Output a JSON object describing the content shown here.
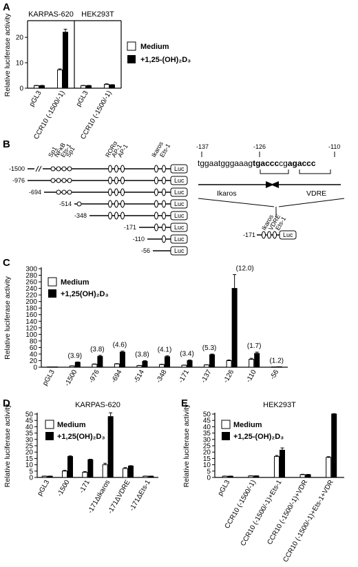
{
  "panel_labels": [
    "A",
    "B",
    "C",
    "D",
    "E"
  ],
  "legend": {
    "medium": "Medium",
    "vd_A": "+1,25-(OH)₂D₃",
    "vd_C": "+1,25(OH)₂D₃",
    "vd_D": "+1,25(OH)₂D₃",
    "vd_E": "+1,25-(OH)₂D₃"
  },
  "chart_data": [
    {
      "id": "A",
      "type": "bar",
      "ylabel": "Relative luciferase activity",
      "yticks": [
        0,
        10,
        20
      ],
      "ylim": [
        0,
        26
      ],
      "groups": [
        "KARPAS-620",
        "HEK293T"
      ],
      "categories": [
        "pGL3",
        "CCR10 (-1500/-1)",
        "pGL3",
        "CCR10 (-1500/-1)"
      ],
      "series": [
        {
          "name": "Medium",
          "values": [
            1,
            7.2,
            1,
            1.5
          ],
          "errors": [
            0.1,
            0.4,
            0.1,
            0.2
          ]
        },
        {
          "name": "+1,25-(OH)2D3",
          "values": [
            1,
            22,
            1,
            1.3
          ],
          "errors": [
            0.1,
            1.2,
            0.1,
            0.1
          ]
        }
      ]
    },
    {
      "id": "C",
      "type": "bar",
      "ylabel": "Relative luciferase activity",
      "yticks": [
        0,
        20,
        40,
        60,
        80,
        100,
        120,
        140,
        160,
        180,
        200,
        220,
        240,
        260,
        280,
        300
      ],
      "ylim": [
        0,
        300
      ],
      "categories": [
        "pGL3",
        "-1500",
        "-976",
        "-694",
        "-514",
        "-348",
        "-171",
        "-137",
        "-126",
        "-110",
        "-56"
      ],
      "annotations": [
        "",
        "(3.9)",
        "(3.8)",
        "(4.6)",
        "(3.8)",
        "(4.1)",
        "(3.4)",
        "(5.3)",
        "(12.0)",
        "(1.7)",
        "(1.2)"
      ],
      "series": [
        {
          "name": "Medium",
          "values": [
            1,
            4,
            9,
            10,
            5,
            8,
            6,
            7,
            20,
            24,
            1
          ],
          "errors": [
            0,
            0.5,
            1,
            1,
            0.5,
            1,
            0.5,
            0.5,
            2,
            3,
            0
          ]
        },
        {
          "name": "+1,25(OH)2D3",
          "values": [
            1,
            15,
            33,
            46,
            18,
            32,
            20,
            38,
            240,
            42,
            1.5
          ],
          "errors": [
            0,
            1,
            3,
            3,
            2,
            3,
            2,
            2,
            42,
            4,
            0
          ]
        }
      ]
    },
    {
      "id": "D",
      "type": "bar",
      "title": "KARPAS-620",
      "ylabel": "Relative luciferase activity",
      "yticks": [
        0,
        5,
        10,
        15,
        20,
        25,
        30,
        35,
        40,
        45,
        50
      ],
      "ylim": [
        0,
        50
      ],
      "categories": [
        "pGL3",
        "-1500",
        "-171",
        "-171ΔIkaros",
        "-171ΔVDRE",
        "-171ΔEts-1"
      ],
      "series": [
        {
          "name": "Medium",
          "values": [
            1,
            5,
            4,
            10,
            7,
            1
          ],
          "errors": [
            0.1,
            0.6,
            0.6,
            1.2,
            0.8,
            0.1
          ]
        },
        {
          "name": "+1,25(OH)2D3",
          "values": [
            1,
            16.5,
            14,
            48,
            9,
            1
          ],
          "errors": [
            0.1,
            0.5,
            0.4,
            3,
            0.3,
            0.1
          ]
        }
      ]
    },
    {
      "id": "E",
      "type": "bar",
      "title": "HEK293T",
      "ylabel": "Relative luciferase activity",
      "yticks": [
        0,
        5,
        10,
        15,
        20,
        25,
        30,
        35,
        40,
        45,
        50
      ],
      "ylim": [
        0,
        50
      ],
      "categories": [
        "pGL3",
        "CCR10 (-1500/-1)",
        "CCR10 (-1500/-1)+Ets-1",
        "CCR10 (-1500/-1)+VDR",
        "CCR10 (-1500/-1)+Ets-1+VDR"
      ],
      "series": [
        {
          "name": "Medium",
          "values": [
            1,
            1.2,
            16.5,
            2.2,
            15.8
          ],
          "errors": [
            0.1,
            0.1,
            0.8,
            0.3,
            0.6
          ]
        },
        {
          "name": "+1,25-(OH)2D3",
          "values": [
            1,
            1.2,
            21.5,
            2.2,
            50
          ],
          "errors": [
            0.1,
            0.1,
            1.8,
            0.2,
            0.3
          ]
        }
      ]
    }
  ],
  "diagram_B": {
    "constructs": [
      "-1500",
      "-976",
      "-694",
      "-514",
      "-348",
      "-171",
      "-110",
      "-56"
    ],
    "sites": [
      "Sp1",
      "NFκB",
      "Ets-1",
      "Sp1",
      "RORα",
      "AP-1",
      "AP-1",
      "Ikaros",
      "Ets-1"
    ],
    "luc": "Luc",
    "seq_positions": [
      "-137",
      "-126",
      "-110"
    ],
    "seq_part1": "tggaatgggaaag",
    "seq_bold1": "tgaccc",
    "seq_part2": "cg",
    "seq_bold2": "agaccc",
    "arrow_ikaros": "Ikaros",
    "arrow_vdre": "VDRE",
    "mini_construct": "-171",
    "mini_sites": [
      "Ikaros",
      "VDRE",
      "Ets-1"
    ],
    "mini_luc": "Luc"
  }
}
